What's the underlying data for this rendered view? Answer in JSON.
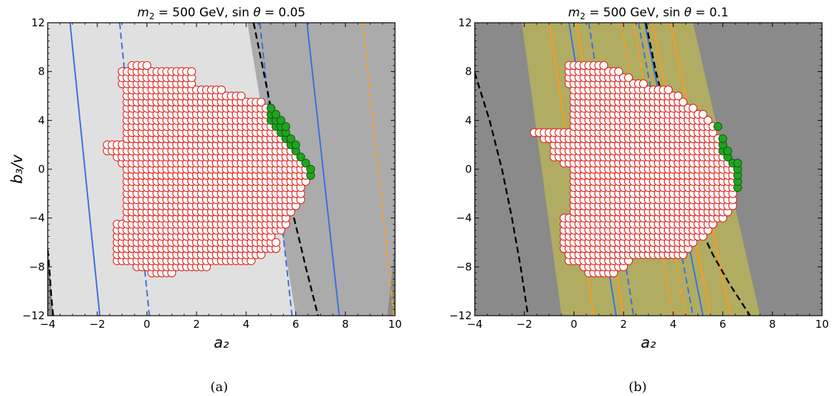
{
  "figure": {
    "panel_labels": [
      "(a)",
      "(b)"
    ]
  },
  "chart_data": [
    {
      "type": "scatter",
      "title": "m₂ = 500 GeV, sinθ = 0.05",
      "title_parts": [
        "m",
        "2",
        " = 500 GeV, sin ",
        "θ",
        " = 0.05"
      ],
      "xlabel": "a₂",
      "ylabel": "b₃/v",
      "xlim": [
        -4,
        10
      ],
      "ylim": [
        -12,
        12
      ],
      "xticks": [
        -4,
        -2,
        0,
        2,
        4,
        6,
        8,
        10
      ],
      "yticks": [
        -12,
        -8,
        -4,
        0,
        4,
        8,
        12
      ],
      "xtick_labels": [
        "−4",
        "−2",
        "0",
        "2",
        "4",
        "6",
        "8",
        "10"
      ],
      "ytick_labels": [
        "−12",
        "−8",
        "−4",
        "0",
        "4",
        "8",
        "12"
      ],
      "grid": false,
      "colors": {
        "region_light": "#e0e0e0",
        "region_mid": "#ababab",
        "region_dark": "#8a8a8a",
        "blue": "#3b6fe0",
        "orange": "#ff9a1f",
        "black": "#000000",
        "point_edge": "#e0221c",
        "point_green": "#1fa51f"
      },
      "regions": [
        {
          "fill": "region_dark",
          "polygon": [
            [
              -4,
              -12
            ],
            [
              10,
              -12
            ],
            [
              10,
              12
            ],
            [
              -4,
              12
            ]
          ]
        },
        {
          "fill": "region_mid",
          "polygon": [
            [
              -3.78,
              -12
            ],
            [
              9.69,
              -12
            ],
            [
              10,
              -6.3
            ],
            [
              10,
              12
            ],
            [
              2.2,
              12
            ]
          ]
        },
        {
          "fill": "region_light",
          "polygon": [
            [
              -3.78,
              -12
            ],
            [
              6.0,
              -12
            ],
            [
              4.05,
              12
            ],
            [
              2.2,
              12
            ],
            [
              -4,
              12
            ],
            [
              -4,
              -6.0
            ]
          ]
        }
      ],
      "lines": [
        {
          "color": "blue",
          "style": "solid",
          "points": [
            [
              -3.1,
              12
            ],
            [
              -1.9,
              -12
            ]
          ]
        },
        {
          "color": "blue",
          "style": "dashed",
          "points": [
            [
              -1.1,
              12
            ],
            [
              0.1,
              -12
            ]
          ]
        },
        {
          "color": "blue",
          "style": "dashed",
          "points": [
            [
              4.55,
              12
            ],
            [
              5.85,
              -12
            ]
          ]
        },
        {
          "color": "blue",
          "style": "solid",
          "points": [
            [
              6.45,
              12
            ],
            [
              7.75,
              -12
            ]
          ]
        },
        {
          "color": "orange",
          "style": "dashed",
          "points": [
            [
              8.7,
              12
            ],
            [
              9.95,
              -12
            ]
          ]
        },
        {
          "color": "black",
          "style": "dashed",
          "points": [
            [
              4.3,
              12
            ],
            [
              4.7,
              8
            ],
            [
              5.1,
              4
            ],
            [
              5.5,
              0
            ],
            [
              5.8,
              -3
            ],
            [
              6.05,
              -5
            ],
            [
              6.4,
              -8
            ],
            [
              6.65,
              -10
            ],
            [
              6.9,
              -12
            ]
          ]
        },
        {
          "color": "black",
          "style": "dashed",
          "points": [
            [
              -4,
              -6.6
            ],
            [
              -3.92,
              -8.5
            ],
            [
              -3.85,
              -10.5
            ],
            [
              -3.78,
              -12
            ]
          ]
        }
      ],
      "point_grid": {
        "x0": -1.6,
        "dx": 0.2,
        "y0": -8.5,
        "dy": 0.5
      },
      "point_rows": [
        {
          "y": -8.5,
          "x": [
            0.2,
            1.0
          ]
        },
        {
          "y": -8.0,
          "x": [
            -0.4,
            2.4
          ]
        },
        {
          "y": -7.5,
          "x": [
            -1.2,
            4.2
          ]
        },
        {
          "y": -7.0,
          "x": [
            -1.2,
            4.6
          ]
        },
        {
          "y": -6.5,
          "x": [
            -1.2,
            5.2
          ]
        },
        {
          "y": -6.0,
          "x": [
            -1.2,
            5.2
          ]
        },
        {
          "y": -5.5,
          "x": [
            -1.2,
            5.0
          ]
        },
        {
          "y": -5.0,
          "x": [
            -1.2,
            5.4
          ]
        },
        {
          "y": -4.5,
          "x": [
            -1.2,
            5.6
          ]
        },
        {
          "y": -4.0,
          "x": [
            -0.8,
            5.6
          ]
        },
        {
          "y": -3.5,
          "x": [
            -0.8,
            5.8
          ]
        },
        {
          "y": -3.0,
          "x": [
            -0.8,
            6.0
          ]
        },
        {
          "y": -2.5,
          "x": [
            -0.8,
            6.2
          ]
        },
        {
          "y": -2.0,
          "x": [
            -0.8,
            6.2
          ]
        },
        {
          "y": -1.5,
          "x": [
            -0.8,
            6.2
          ]
        },
        {
          "y": -1.0,
          "x": [
            -0.8,
            6.4
          ]
        },
        {
          "y": -0.5,
          "x": [
            -0.8,
            6.6
          ]
        },
        {
          "y": 0.0,
          "x": [
            -0.8,
            6.6
          ]
        },
        {
          "y": 0.5,
          "x": [
            -1.0,
            6.4
          ]
        },
        {
          "y": 1.0,
          "x": [
            -1.2,
            6.2
          ]
        },
        {
          "y": 1.5,
          "x": [
            -1.6,
            6.0
          ]
        },
        {
          "y": 2.0,
          "x": [
            -1.6,
            6.0
          ]
        },
        {
          "y": 2.5,
          "x": [
            -0.8,
            5.8
          ]
        },
        {
          "y": 3.0,
          "x": [
            -0.8,
            5.6
          ]
        },
        {
          "y": 3.5,
          "x": [
            -0.8,
            5.6
          ]
        },
        {
          "y": 4.0,
          "x": [
            -0.8,
            5.4
          ]
        },
        {
          "y": 4.5,
          "x": [
            -0.8,
            5.2
          ]
        },
        {
          "y": 5.0,
          "x": [
            -0.8,
            5.0
          ]
        },
        {
          "y": 5.5,
          "x": [
            -0.8,
            4.6
          ]
        },
        {
          "y": 6.0,
          "x": [
            -0.8,
            3.8
          ]
        },
        {
          "y": 6.5,
          "x": [
            -0.8,
            3.0
          ]
        },
        {
          "y": 7.0,
          "x": [
            -1.0,
            1.8
          ]
        },
        {
          "y": 7.5,
          "x": [
            -1.0,
            1.8
          ]
        },
        {
          "y": 8.0,
          "x": [
            -1.0,
            1.8
          ]
        },
        {
          "y": 8.5,
          "x": [
            -0.6,
            0.0
          ]
        }
      ],
      "green_region": {
        "comment_free": true,
        "polygon": [
          [
            5.0,
            5.3
          ],
          [
            5.7,
            5.3
          ],
          [
            7.6,
            3.0
          ],
          [
            7.6,
            -3.2
          ],
          [
            6.6,
            -3.2
          ],
          [
            6.6,
            0.0
          ],
          [
            5.8,
            1.6
          ],
          [
            5.0,
            3.7
          ]
        ]
      }
    },
    {
      "type": "scatter",
      "title": "m₂ = 500 GeV, sinθ = 0.1",
      "title_parts": [
        "m",
        "2",
        " = 500 GeV, sin ",
        "θ",
        " = 0.1"
      ],
      "xlabel": "a₂",
      "ylabel": "",
      "xlim": [
        -4,
        10
      ],
      "ylim": [
        -12,
        12
      ],
      "xticks": [
        -4,
        -2,
        0,
        2,
        4,
        6,
        8,
        10
      ],
      "yticks": [
        -12,
        -8,
        -4,
        0,
        4,
        8,
        12
      ],
      "xtick_labels": [
        "−4",
        "−2",
        "0",
        "2",
        "4",
        "6",
        "8",
        "10"
      ],
      "ytick_labels": [
        "−12",
        "−8",
        "−4",
        "0",
        "4",
        "8",
        "12"
      ],
      "grid": false,
      "colors": {
        "region_dark": "#8a8a8a",
        "region_olive": "#b0ac62",
        "blue": "#3b6fe0",
        "orange": "#ff9a1f",
        "black": "#000000",
        "point_edge": "#e0221c",
        "point_green": "#1fa51f"
      },
      "regions": [
        {
          "fill": "region_dark",
          "polygon": [
            [
              -4,
              -12
            ],
            [
              10,
              -12
            ],
            [
              10,
              12
            ],
            [
              -4,
              12
            ]
          ]
        },
        {
          "fill": "region_olive",
          "polygon": [
            [
              -0.5,
              -12
            ],
            [
              7.5,
              -12
            ],
            [
              4.8,
              12
            ],
            [
              -2.1,
              12
            ]
          ]
        }
      ],
      "lines": [
        {
          "color": "orange",
          "style": "solid",
          "points": [
            [
              -1.0,
              12
            ],
            [
              0.8,
              -12
            ]
          ]
        },
        {
          "color": "blue",
          "style": "solid",
          "points": [
            [
              -0.2,
              12
            ],
            [
              1.7,
              -12
            ]
          ]
        },
        {
          "color": "orange",
          "style": "solid",
          "points": [
            [
              0.1,
              12
            ],
            [
              2.0,
              -12
            ]
          ]
        },
        {
          "color": "blue",
          "style": "dashed",
          "points": [
            [
              0.6,
              12
            ],
            [
              2.4,
              -12
            ]
          ]
        },
        {
          "color": "orange",
          "style": "dashed",
          "points": [
            [
              1.9,
              12
            ],
            [
              4.0,
              -12
            ]
          ]
        },
        {
          "color": "orange",
          "style": "dashed",
          "points": [
            [
              2.4,
              12
            ],
            [
              4.5,
              -12
            ]
          ]
        },
        {
          "color": "blue",
          "style": "dashed",
          "points": [
            [
              2.6,
              12
            ],
            [
              4.8,
              -12
            ]
          ]
        },
        {
          "color": "blue",
          "style": "solid",
          "points": [
            [
              2.85,
              12
            ],
            [
              5.2,
              -12
            ]
          ]
        },
        {
          "color": "orange",
          "style": "solid",
          "points": [
            [
              3.15,
              12
            ],
            [
              5.5,
              -12
            ]
          ]
        },
        {
          "color": "orange",
          "style": "solid",
          "points": [
            [
              3.9,
              12
            ],
            [
              6.3,
              -12
            ]
          ]
        },
        {
          "color": "black",
          "style": "dashed",
          "points": [
            [
              2.9,
              12
            ],
            [
              3.3,
              8
            ],
            [
              3.8,
              4
            ],
            [
              4.3,
              0
            ],
            [
              4.9,
              -4
            ],
            [
              5.6,
              -7
            ],
            [
              6.3,
              -9.5
            ],
            [
              7.1,
              -12
            ]
          ]
        },
        {
          "color": "black",
          "style": "dashed",
          "points": [
            [
              -4,
              7.9
            ],
            [
              -3.4,
              4
            ],
            [
              -2.9,
              0
            ],
            [
              -2.5,
              -4
            ],
            [
              -2.15,
              -8
            ],
            [
              -1.85,
              -12
            ]
          ]
        }
      ],
      "point_grid": {
        "x0": -1.6,
        "dx": 0.2,
        "y0": -8.5,
        "dy": 0.5
      },
      "point_rows": [
        {
          "y": -8.5,
          "x": [
            0.6,
            1.6
          ]
        },
        {
          "y": -8.0,
          "x": [
            0.4,
            2.0
          ]
        },
        {
          "y": -7.5,
          "x": [
            -0.2,
            2.2
          ]
        },
        {
          "y": -7.0,
          "x": [
            -0.2,
            4.4
          ]
        },
        {
          "y": -6.5,
          "x": [
            -0.4,
            4.6
          ]
        },
        {
          "y": -6.0,
          "x": [
            -0.4,
            4.8
          ]
        },
        {
          "y": -5.5,
          "x": [
            -0.4,
            5.2
          ]
        },
        {
          "y": -5.0,
          "x": [
            -0.4,
            5.4
          ]
        },
        {
          "y": -4.5,
          "x": [
            -0.4,
            5.6
          ]
        },
        {
          "y": -4.0,
          "x": [
            -0.4,
            6.0
          ]
        },
        {
          "y": -3.5,
          "x": [
            0.0,
            6.2
          ]
        },
        {
          "y": -3.0,
          "x": [
            0.0,
            6.4
          ]
        },
        {
          "y": -2.5,
          "x": [
            0.0,
            6.4
          ]
        },
        {
          "y": -2.0,
          "x": [
            0.0,
            6.4
          ]
        },
        {
          "y": -1.5,
          "x": [
            0.0,
            6.6
          ]
        },
        {
          "y": -1.0,
          "x": [
            0.0,
            6.6
          ]
        },
        {
          "y": -0.5,
          "x": [
            0.0,
            6.6
          ]
        },
        {
          "y": 0.0,
          "x": [
            0.0,
            6.6
          ]
        },
        {
          "y": 0.5,
          "x": [
            -0.4,
            6.6
          ]
        },
        {
          "y": 1.0,
          "x": [
            -0.8,
            6.2
          ]
        },
        {
          "y": 1.5,
          "x": [
            -0.8,
            6.2
          ]
        },
        {
          "y": 2.0,
          "x": [
            -0.8,
            6.0
          ]
        },
        {
          "y": 2.5,
          "x": [
            -1.2,
            6.0
          ]
        },
        {
          "y": 3.0,
          "x": [
            -1.6,
            5.6
          ]
        },
        {
          "y": 3.5,
          "x": [
            0.0,
            5.8
          ]
        },
        {
          "y": 4.0,
          "x": [
            0.0,
            5.4
          ]
        },
        {
          "y": 4.5,
          "x": [
            0.0,
            5.2
          ]
        },
        {
          "y": 5.0,
          "x": [
            0.0,
            4.8
          ]
        },
        {
          "y": 5.5,
          "x": [
            0.0,
            4.4
          ]
        },
        {
          "y": 6.0,
          "x": [
            0.0,
            4.2
          ]
        },
        {
          "y": 6.5,
          "x": [
            0.0,
            3.8
          ]
        },
        {
          "y": 7.0,
          "x": [
            -0.2,
            2.8
          ]
        },
        {
          "y": 7.5,
          "x": [
            -0.2,
            2.2
          ]
        },
        {
          "y": 8.0,
          "x": [
            -0.2,
            1.8
          ]
        },
        {
          "y": 8.5,
          "x": [
            -0.2,
            1.2
          ]
        }
      ],
      "green_region": {
        "polygon": [
          [
            5.8,
            3.8
          ],
          [
            6.3,
            3.8
          ],
          [
            7.1,
            2.0
          ],
          [
            7.1,
            -1.5
          ],
          [
            6.5,
            -1.5
          ],
          [
            6.5,
            0.0
          ],
          [
            6.0,
            1.2
          ],
          [
            5.8,
            2.6
          ]
        ]
      }
    }
  ]
}
